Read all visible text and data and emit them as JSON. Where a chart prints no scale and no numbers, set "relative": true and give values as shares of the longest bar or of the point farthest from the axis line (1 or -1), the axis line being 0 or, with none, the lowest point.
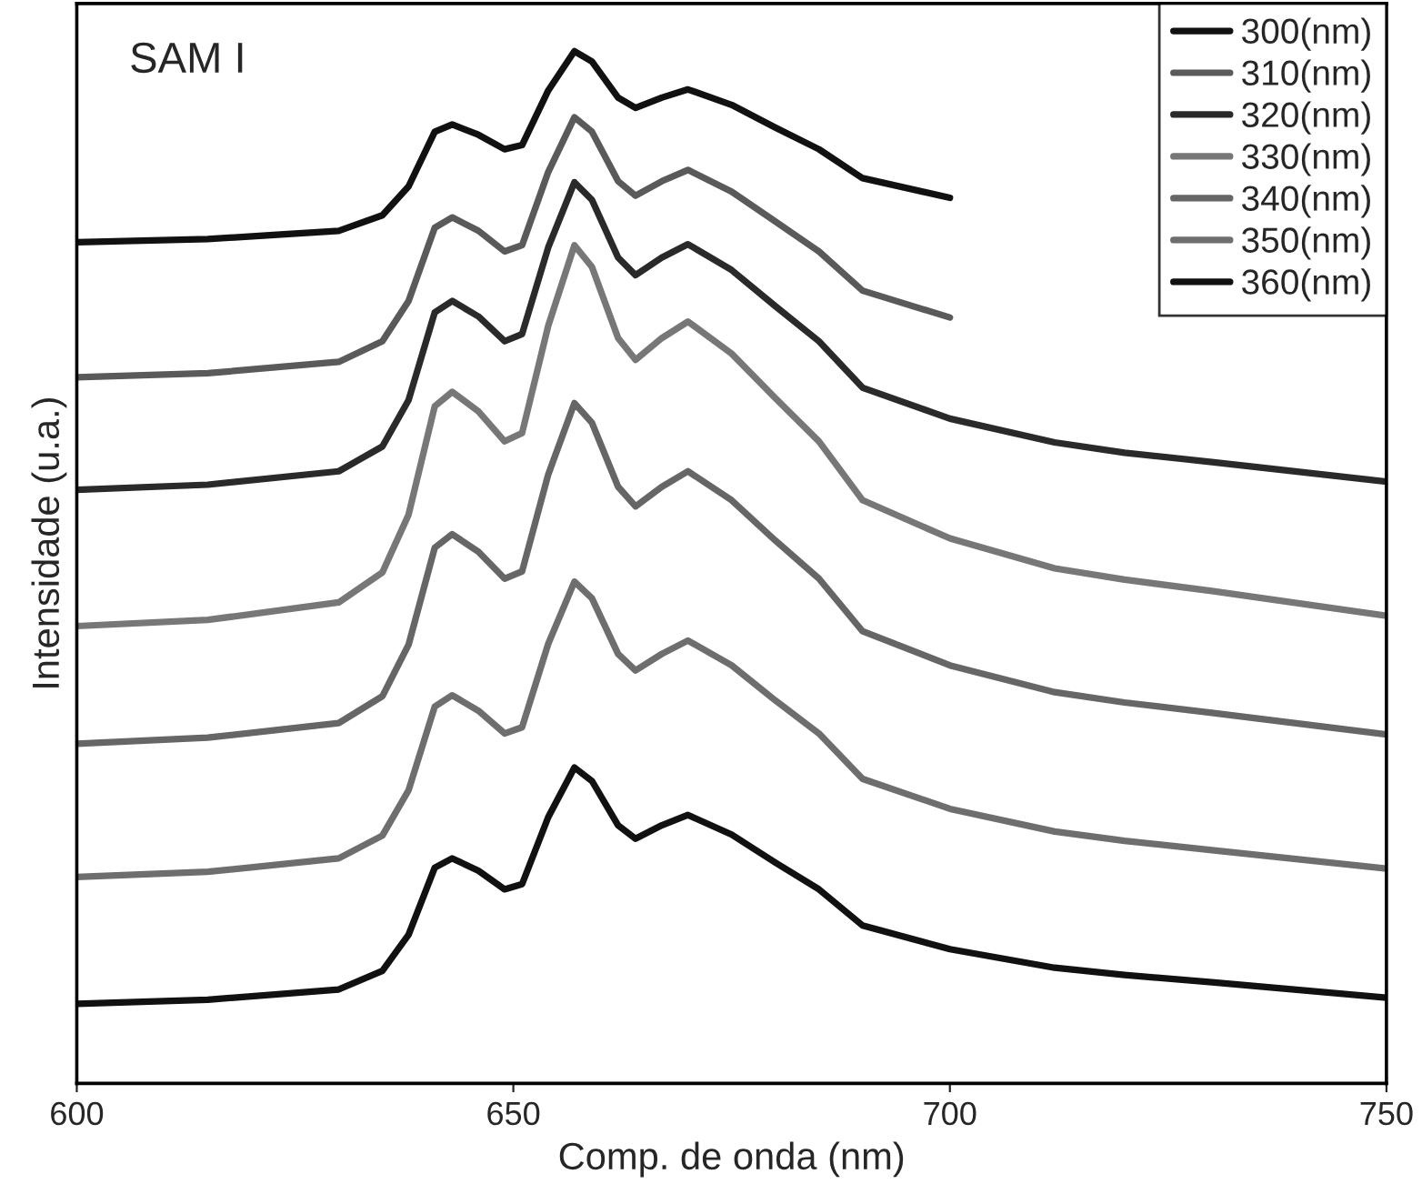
{
  "chart_data": {
    "type": "line",
    "relative": true,
    "xlabel": "Comp. de onda (nm)",
    "ylabel": "Intensidade (u.a.)",
    "annotations": [
      "SAM I"
    ],
    "x": [
      600,
      615,
      630,
      635,
      638,
      641,
      643,
      646,
      649,
      651,
      654,
      657,
      659,
      662,
      664,
      667,
      670,
      675,
      680,
      685,
      690,
      700,
      712,
      720,
      730,
      750
    ],
    "xlim": [
      600,
      750
    ],
    "xticks": [
      600,
      650,
      700,
      750
    ],
    "legend": "top right",
    "grid": false,
    "line_style": "solid",
    "marker": "none",
    "series": [
      {
        "name": "300(nm)",
        "color": "#111111",
        "values": [
          0.815,
          0.818,
          0.826,
          0.841,
          0.869,
          0.922,
          0.929,
          0.919,
          0.905,
          0.909,
          0.962,
          1.0,
          0.99,
          0.955,
          0.945,
          0.955,
          0.963,
          0.948,
          0.926,
          0.905,
          0.877,
          0.858,
          null,
          null,
          null,
          null
        ]
      },
      {
        "name": "310(nm)",
        "color": "#5a5a5a",
        "values": [
          0.684,
          0.688,
          0.699,
          0.719,
          0.758,
          0.829,
          0.839,
          0.826,
          0.806,
          0.812,
          0.883,
          0.936,
          0.922,
          0.874,
          0.86,
          0.874,
          0.885,
          0.864,
          0.835,
          0.806,
          0.768,
          0.742,
          null,
          null,
          null,
          null
        ]
      },
      {
        "name": "320(nm)",
        "color": "#2a2a2a",
        "values": [
          0.575,
          0.58,
          0.593,
          0.617,
          0.662,
          0.747,
          0.758,
          0.743,
          0.719,
          0.726,
          0.81,
          0.873,
          0.856,
          0.8,
          0.783,
          0.8,
          0.813,
          0.788,
          0.753,
          0.719,
          0.674,
          0.644,
          0.621,
          0.611,
          0.602,
          0.583
        ]
      },
      {
        "name": "330(nm)",
        "color": "#777777",
        "values": [
          0.443,
          0.449,
          0.466,
          0.495,
          0.551,
          0.656,
          0.67,
          0.651,
          0.622,
          0.63,
          0.734,
          0.812,
          0.791,
          0.722,
          0.701,
          0.722,
          0.738,
          0.707,
          0.664,
          0.622,
          0.565,
          0.528,
          0.499,
          0.488,
          0.477,
          0.453
        ]
      },
      {
        "name": "340(nm)",
        "color": "#666666",
        "values": [
          0.329,
          0.335,
          0.349,
          0.375,
          0.425,
          0.519,
          0.532,
          0.515,
          0.489,
          0.496,
          0.59,
          0.659,
          0.64,
          0.578,
          0.559,
          0.578,
          0.593,
          0.565,
          0.526,
          0.489,
          0.438,
          0.405,
          0.379,
          0.369,
          0.359,
          0.338
        ]
      },
      {
        "name": "350(nm)",
        "color": "#6e6e6e",
        "values": [
          0.2,
          0.205,
          0.218,
          0.24,
          0.284,
          0.365,
          0.376,
          0.361,
          0.339,
          0.345,
          0.426,
          0.486,
          0.47,
          0.416,
          0.4,
          0.416,
          0.429,
          0.405,
          0.371,
          0.339,
          0.295,
          0.266,
          0.244,
          0.235,
          0.226,
          0.208
        ]
      },
      {
        "name": "360(nm)",
        "color": "#111111",
        "values": [
          0.077,
          0.081,
          0.091,
          0.109,
          0.144,
          0.209,
          0.218,
          0.206,
          0.188,
          0.193,
          0.258,
          0.306,
          0.293,
          0.25,
          0.237,
          0.25,
          0.26,
          0.241,
          0.214,
          0.188,
          0.153,
          0.13,
          0.112,
          0.105,
          0.098,
          0.083
        ]
      }
    ]
  }
}
